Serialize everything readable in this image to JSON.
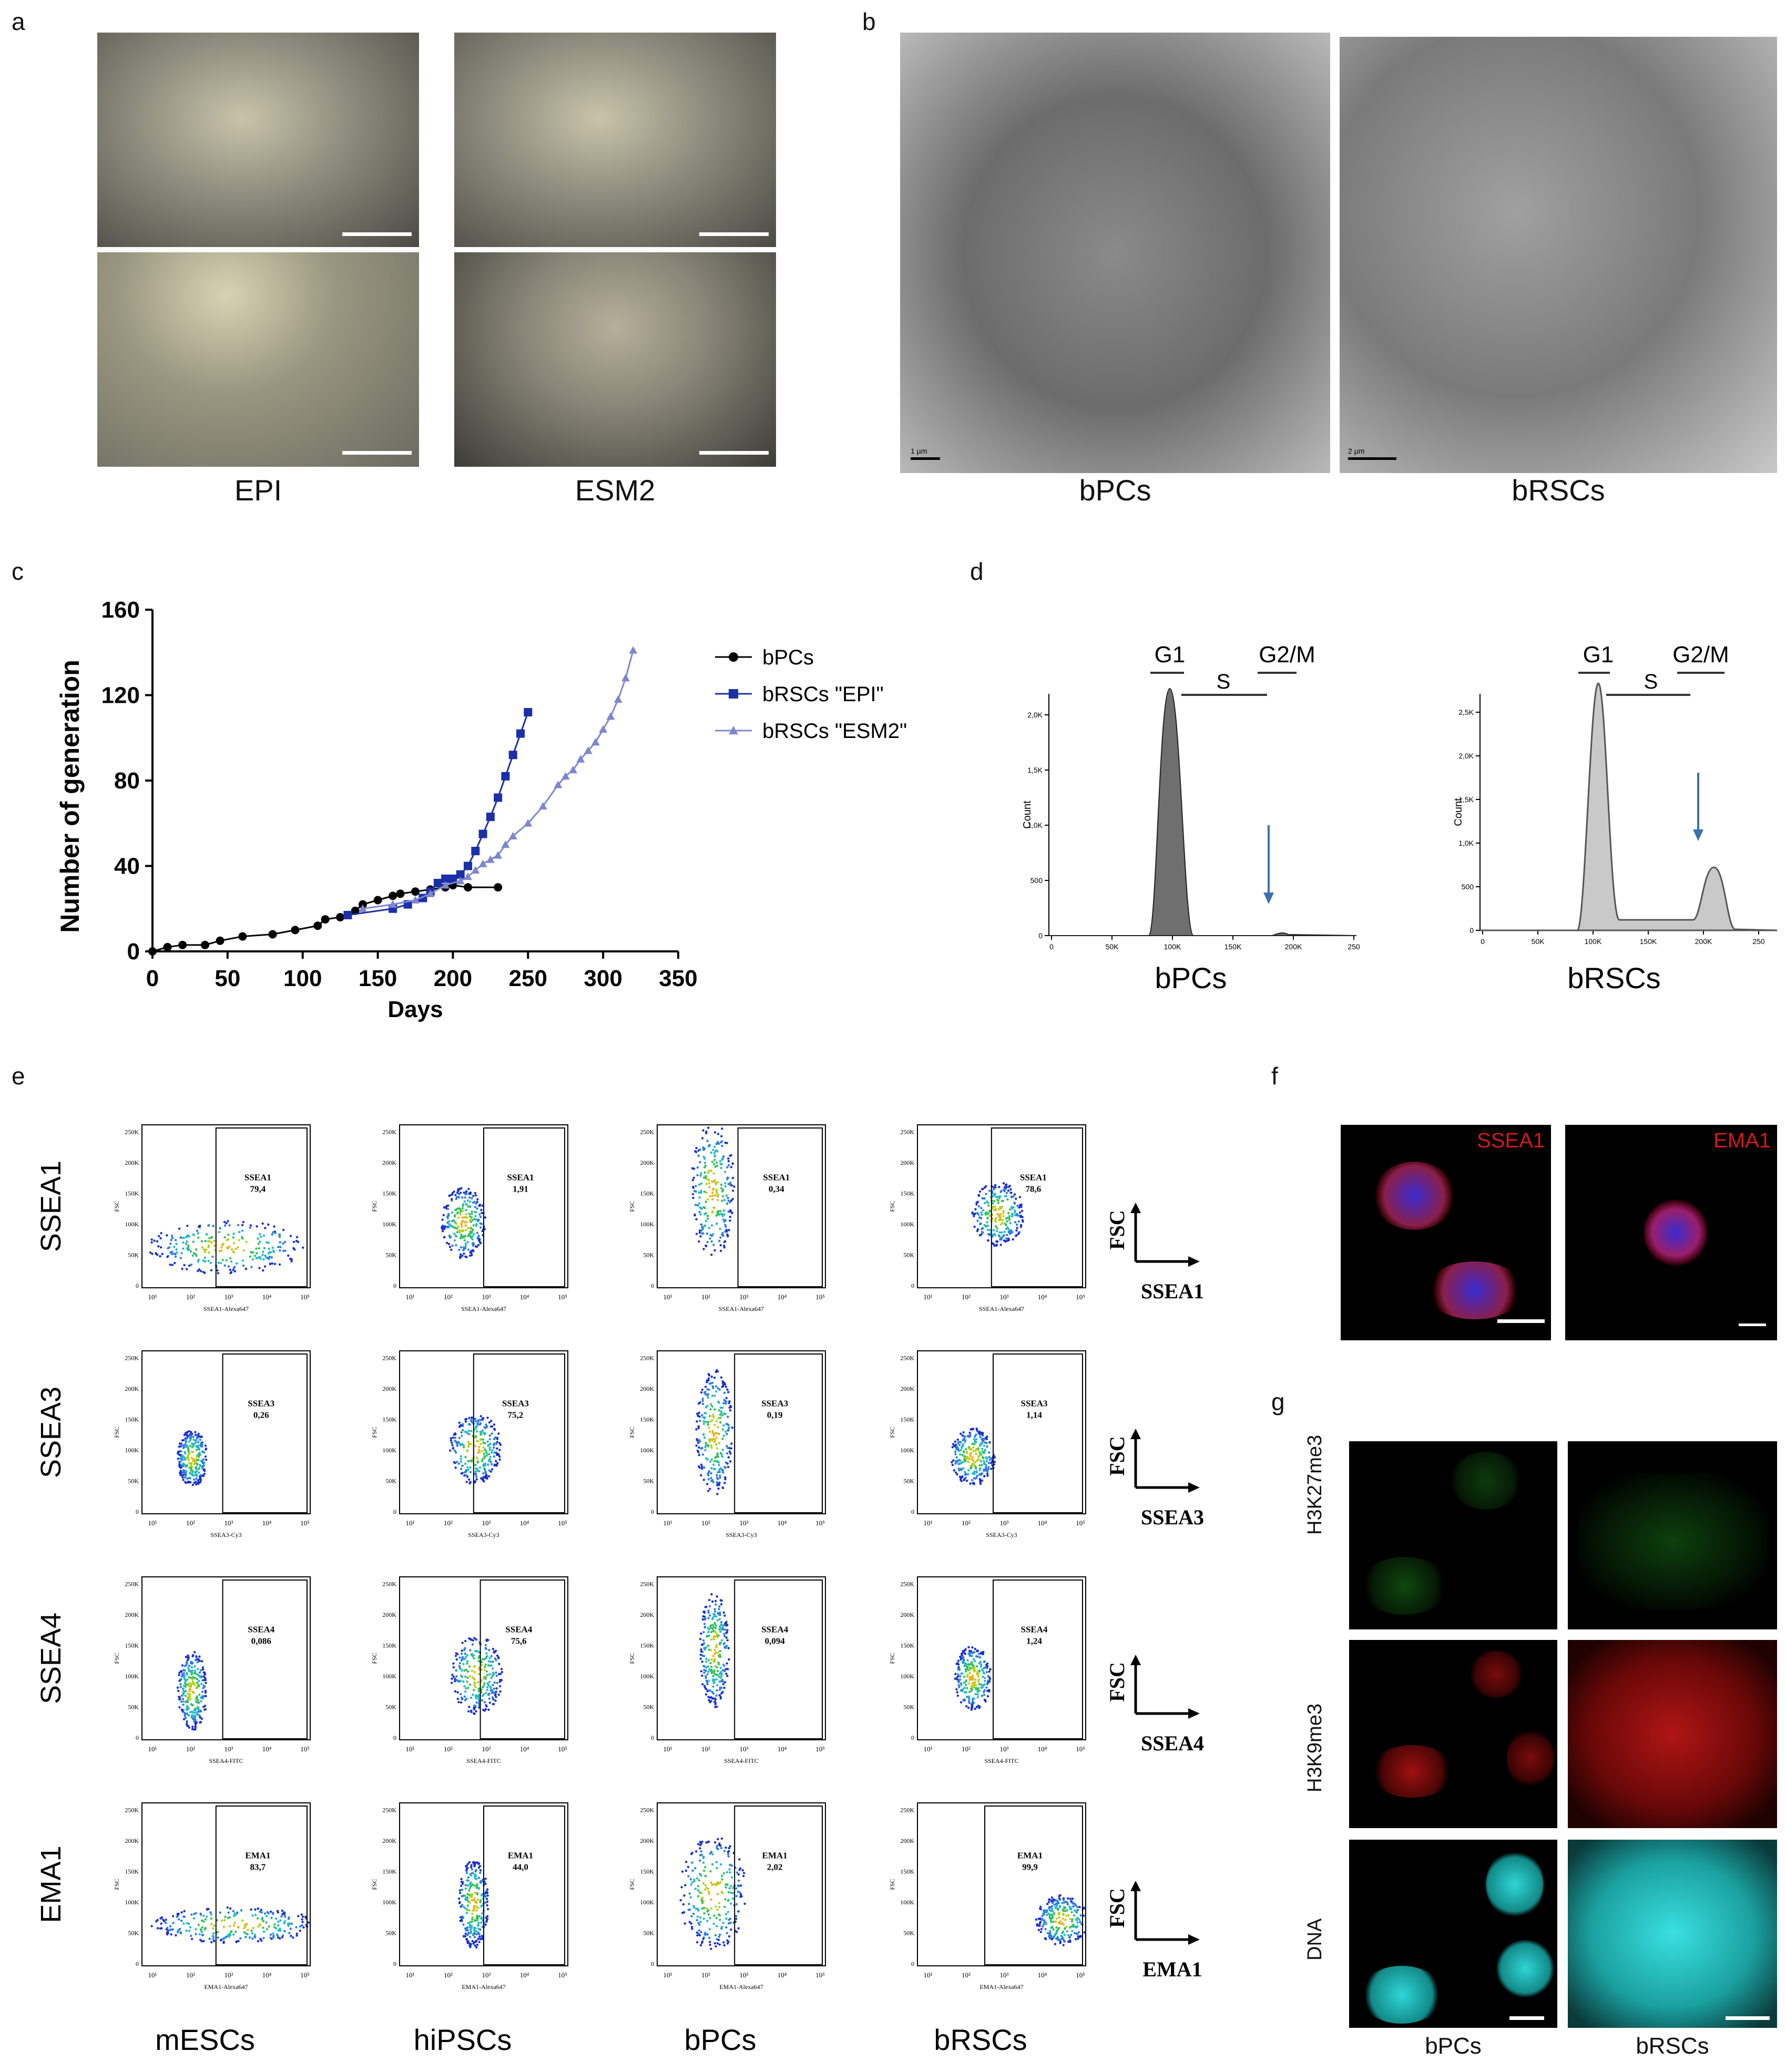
{
  "panels": {
    "a": "a",
    "b": "b",
    "c": "c",
    "d": "d",
    "e": "e",
    "f": "f",
    "g": "g"
  },
  "panel_a": {
    "captions": [
      "EPI",
      "ESM2"
    ]
  },
  "panel_b": {
    "captions": [
      "bPCs",
      "bRSCs"
    ],
    "scale_labels": [
      "1 µm",
      "2 µm"
    ]
  },
  "panel_d": {
    "captions": [
      "bPCs",
      "bRSCs"
    ],
    "phase_labels": {
      "g1": "G1",
      "s": "S",
      "g2m": "G2/M"
    },
    "ylabel": "Count",
    "left_yticks": [
      "0",
      "500",
      "1,0K",
      "1,5K",
      "2,0K"
    ],
    "right_yticks": [
      "0",
      "500",
      "1,0K",
      "1,5K",
      "2,0K",
      "2,5K"
    ],
    "xticks": [
      "0",
      "50K",
      "100K",
      "150K",
      "200K",
      "250"
    ]
  },
  "panel_e": {
    "row_labels": [
      "SSEA1",
      "SSEA3",
      "SSEA4",
      "EMA1"
    ],
    "col_labels": [
      "mESCs",
      "hiPSCs",
      "bPCs",
      "bRSCs"
    ],
    "y_axis_label": "FSC",
    "yticks": [
      "0",
      "50K",
      "100K",
      "150K",
      "200K",
      "250K"
    ],
    "xticks": [
      "10¹",
      "10²",
      "10³",
      "10⁴",
      "10⁵"
    ],
    "x_axis_labels": [
      "SSEA1-Alexa647",
      "SSEA3-Cy3",
      "SSEA4-FITC",
      "EMA1-Alexa647"
    ],
    "values": [
      [
        "79,4",
        "1,91",
        "0,34",
        "78,6"
      ],
      [
        "0,26",
        "75,2",
        "0,19",
        "1,14"
      ],
      [
        "0,086",
        "75,6",
        "0,094",
        "1,24"
      ],
      [
        "83,7",
        "44,0",
        "2,02",
        "99,9"
      ]
    ],
    "axis_keys": [
      "SSEA1",
      "SSEA3",
      "SSEA4",
      "EMA1"
    ]
  },
  "panel_f": {
    "labels": [
      "SSEA1",
      "EMA1"
    ]
  },
  "panel_g": {
    "row_labels": [
      "H3K27me3",
      "H3K9me3",
      "DNA"
    ],
    "col_labels": [
      "bPCs",
      "bRSCs"
    ]
  },
  "chart_data": {
    "type": "line",
    "title": "",
    "xlabel": "Days",
    "ylabel": "Number of generation",
    "xlim": [
      0,
      350
    ],
    "ylim": [
      0,
      160
    ],
    "xticks": [
      0,
      50,
      100,
      150,
      200,
      250,
      300,
      350
    ],
    "yticks": [
      0,
      40,
      80,
      120,
      160
    ],
    "legend_position": "right",
    "series": [
      {
        "name": "bPCs",
        "marker": "circle",
        "color": "#000000",
        "x": [
          0,
          10,
          20,
          35,
          45,
          60,
          80,
          95,
          110,
          115,
          125,
          135,
          140,
          150,
          160,
          165,
          175,
          185,
          195,
          200,
          210,
          230
        ],
        "y": [
          0,
          2,
          3,
          3,
          5,
          7,
          8,
          10,
          12,
          15,
          16,
          19,
          22,
          24,
          26,
          27,
          28,
          29,
          30,
          31,
          30,
          30
        ]
      },
      {
        "name": "bRSCs \"EPI\"",
        "marker": "square",
        "color": "#1a2fa8",
        "x": [
          130,
          160,
          170,
          180,
          185,
          190,
          195,
          200,
          205,
          210,
          215,
          220,
          225,
          230,
          235,
          240,
          245,
          250
        ],
        "y": [
          17,
          20,
          22,
          25,
          28,
          32,
          34,
          34,
          36,
          40,
          47,
          55,
          63,
          72,
          82,
          92,
          102,
          112
        ]
      },
      {
        "name": "bRSCs \"ESM2\"",
        "marker": "triangle",
        "color": "#7f85d0",
        "x": [
          140,
          160,
          175,
          185,
          195,
          205,
          210,
          215,
          220,
          225,
          230,
          235,
          240,
          250,
          260,
          270,
          275,
          280,
          285,
          290,
          295,
          300,
          305,
          310,
          315,
          320
        ],
        "y": [
          20,
          22,
          24,
          27,
          31,
          33,
          35,
          38,
          41,
          43,
          45,
          50,
          54,
          60,
          68,
          78,
          82,
          85,
          90,
          94,
          98,
          104,
          110,
          118,
          128,
          141
        ]
      }
    ]
  }
}
